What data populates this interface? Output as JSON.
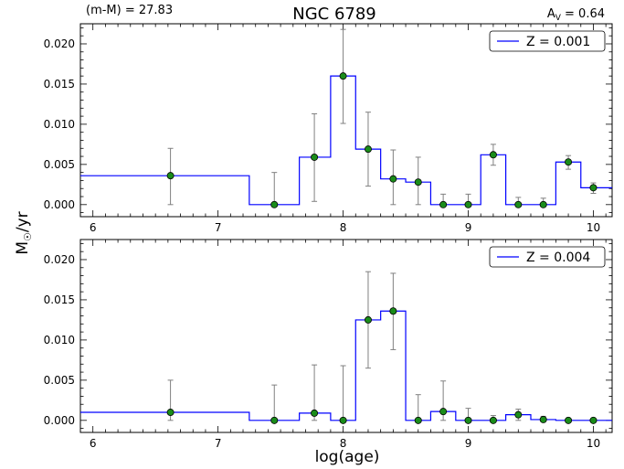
{
  "header": {
    "left": "(m-M) = 27.83",
    "title": "NGC 6789",
    "right_main": "A",
    "right_sub": "V",
    "right_value": " = 0.64"
  },
  "ylabel_main": "M",
  "ylabel_sub": "☉",
  "ylabel_rest": "/yr",
  "xlabel": "log(age)",
  "colors": {
    "line": "#0000ff",
    "marker": "#1a8c1a",
    "errorbar": "#808080"
  },
  "chart_data": [
    {
      "type": "step-line-with-errorbars",
      "legend": "Z = 0.001",
      "legend_position": "top-right",
      "xlim": [
        5.9,
        10.15
      ],
      "ylim": [
        -0.0015,
        0.0225
      ],
      "x_ticks": [
        "6",
        "7",
        "8",
        "9",
        "10"
      ],
      "y_ticks": [
        "0.000",
        "0.005",
        "0.010",
        "0.015",
        "0.020"
      ],
      "step_bins": [
        {
          "x0": 5.9,
          "x1": 7.25,
          "y": 0.0036
        },
        {
          "x0": 7.25,
          "x1": 7.65,
          "y": 0.0
        },
        {
          "x0": 7.65,
          "x1": 7.9,
          "y": 0.0059
        },
        {
          "x0": 7.9,
          "x1": 8.1,
          "y": 0.016
        },
        {
          "x0": 8.1,
          "x1": 8.3,
          "y": 0.0069
        },
        {
          "x0": 8.3,
          "x1": 8.5,
          "y": 0.0032
        },
        {
          "x0": 8.5,
          "x1": 8.7,
          "y": 0.0028
        },
        {
          "x0": 8.7,
          "x1": 8.9,
          "y": 0.0
        },
        {
          "x0": 8.9,
          "x1": 9.1,
          "y": 0.0
        },
        {
          "x0": 9.1,
          "x1": 9.3,
          "y": 0.0062
        },
        {
          "x0": 9.3,
          "x1": 9.5,
          "y": 0.0
        },
        {
          "x0": 9.5,
          "x1": 9.7,
          "y": 0.0
        },
        {
          "x0": 9.7,
          "x1": 9.9,
          "y": 0.0053
        },
        {
          "x0": 9.9,
          "x1": 10.15,
          "y": 0.0021
        }
      ],
      "points": [
        {
          "x": 6.62,
          "y": 0.0036,
          "lo": 0.0,
          "hi": 0.007
        },
        {
          "x": 7.45,
          "y": 0.0,
          "lo": 0.0,
          "hi": 0.004
        },
        {
          "x": 7.77,
          "y": 0.0059,
          "lo": 0.0004,
          "hi": 0.0113
        },
        {
          "x": 8.0,
          "y": 0.016,
          "lo": 0.0101,
          "hi": 0.0218
        },
        {
          "x": 8.2,
          "y": 0.0069,
          "lo": 0.0023,
          "hi": 0.0115
        },
        {
          "x": 8.4,
          "y": 0.0032,
          "lo": 0.0,
          "hi": 0.0068
        },
        {
          "x": 8.6,
          "y": 0.0028,
          "lo": 0.0,
          "hi": 0.0059
        },
        {
          "x": 8.8,
          "y": 0.0,
          "lo": 0.0,
          "hi": 0.0013
        },
        {
          "x": 9.0,
          "y": 0.0,
          "lo": 0.0,
          "hi": 0.0013
        },
        {
          "x": 9.2,
          "y": 0.0062,
          "lo": 0.0049,
          "hi": 0.0075
        },
        {
          "x": 9.4,
          "y": 0.0,
          "lo": 0.0,
          "hi": 0.0009
        },
        {
          "x": 9.6,
          "y": 0.0,
          "lo": 0.0,
          "hi": 0.0008
        },
        {
          "x": 9.8,
          "y": 0.0053,
          "lo": 0.0044,
          "hi": 0.0061
        },
        {
          "x": 10.0,
          "y": 0.0021,
          "lo": 0.0014,
          "hi": 0.0027
        }
      ]
    },
    {
      "type": "step-line-with-errorbars",
      "legend": "Z = 0.004",
      "legend_position": "top-right",
      "xlim": [
        5.9,
        10.15
      ],
      "ylim": [
        -0.0015,
        0.0225
      ],
      "x_ticks": [
        "6",
        "7",
        "8",
        "9",
        "10"
      ],
      "y_ticks": [
        "0.000",
        "0.005",
        "0.010",
        "0.015",
        "0.020"
      ],
      "step_bins": [
        {
          "x0": 5.9,
          "x1": 7.25,
          "y": 0.001
        },
        {
          "x0": 7.25,
          "x1": 7.65,
          "y": 0.0
        },
        {
          "x0": 7.65,
          "x1": 7.9,
          "y": 0.0009
        },
        {
          "x0": 7.9,
          "x1": 8.1,
          "y": 0.0
        },
        {
          "x0": 8.1,
          "x1": 8.3,
          "y": 0.0125
        },
        {
          "x0": 8.3,
          "x1": 8.5,
          "y": 0.0136
        },
        {
          "x0": 8.5,
          "x1": 8.7,
          "y": 0.0
        },
        {
          "x0": 8.7,
          "x1": 8.9,
          "y": 0.0011
        },
        {
          "x0": 8.9,
          "x1": 9.1,
          "y": 0.0
        },
        {
          "x0": 9.1,
          "x1": 9.3,
          "y": 0.0
        },
        {
          "x0": 9.3,
          "x1": 9.5,
          "y": 0.0007
        },
        {
          "x0": 9.5,
          "x1": 9.7,
          "y": 0.0001
        },
        {
          "x0": 9.7,
          "x1": 9.9,
          "y": 0.0
        },
        {
          "x0": 9.9,
          "x1": 10.15,
          "y": 0.0
        }
      ],
      "points": [
        {
          "x": 6.62,
          "y": 0.001,
          "lo": 0.0,
          "hi": 0.005
        },
        {
          "x": 7.45,
          "y": 0.0,
          "lo": 0.0,
          "hi": 0.0044
        },
        {
          "x": 7.77,
          "y": 0.0009,
          "lo": 0.0,
          "hi": 0.0069
        },
        {
          "x": 8.0,
          "y": 0.0,
          "lo": 0.0,
          "hi": 0.0068
        },
        {
          "x": 8.2,
          "y": 0.0125,
          "lo": 0.0065,
          "hi": 0.0185
        },
        {
          "x": 8.4,
          "y": 0.0136,
          "lo": 0.0088,
          "hi": 0.0183
        },
        {
          "x": 8.6,
          "y": 0.0,
          "lo": 0.0,
          "hi": 0.0032
        },
        {
          "x": 8.8,
          "y": 0.0011,
          "lo": 0.0,
          "hi": 0.0049
        },
        {
          "x": 9.0,
          "y": 0.0,
          "lo": 0.0,
          "hi": 0.0015
        },
        {
          "x": 9.2,
          "y": 0.0,
          "lo": 0.0,
          "hi": 0.0006
        },
        {
          "x": 9.4,
          "y": 0.0007,
          "lo": 0.0,
          "hi": 0.0014
        },
        {
          "x": 9.6,
          "y": 0.0001,
          "lo": 0.0,
          "hi": 0.0005
        },
        {
          "x": 9.8,
          "y": 0.0,
          "lo": 0.0,
          "hi": 0.0
        },
        {
          "x": 10.0,
          "y": 0.0,
          "lo": 0.0,
          "hi": 0.0
        }
      ]
    }
  ]
}
